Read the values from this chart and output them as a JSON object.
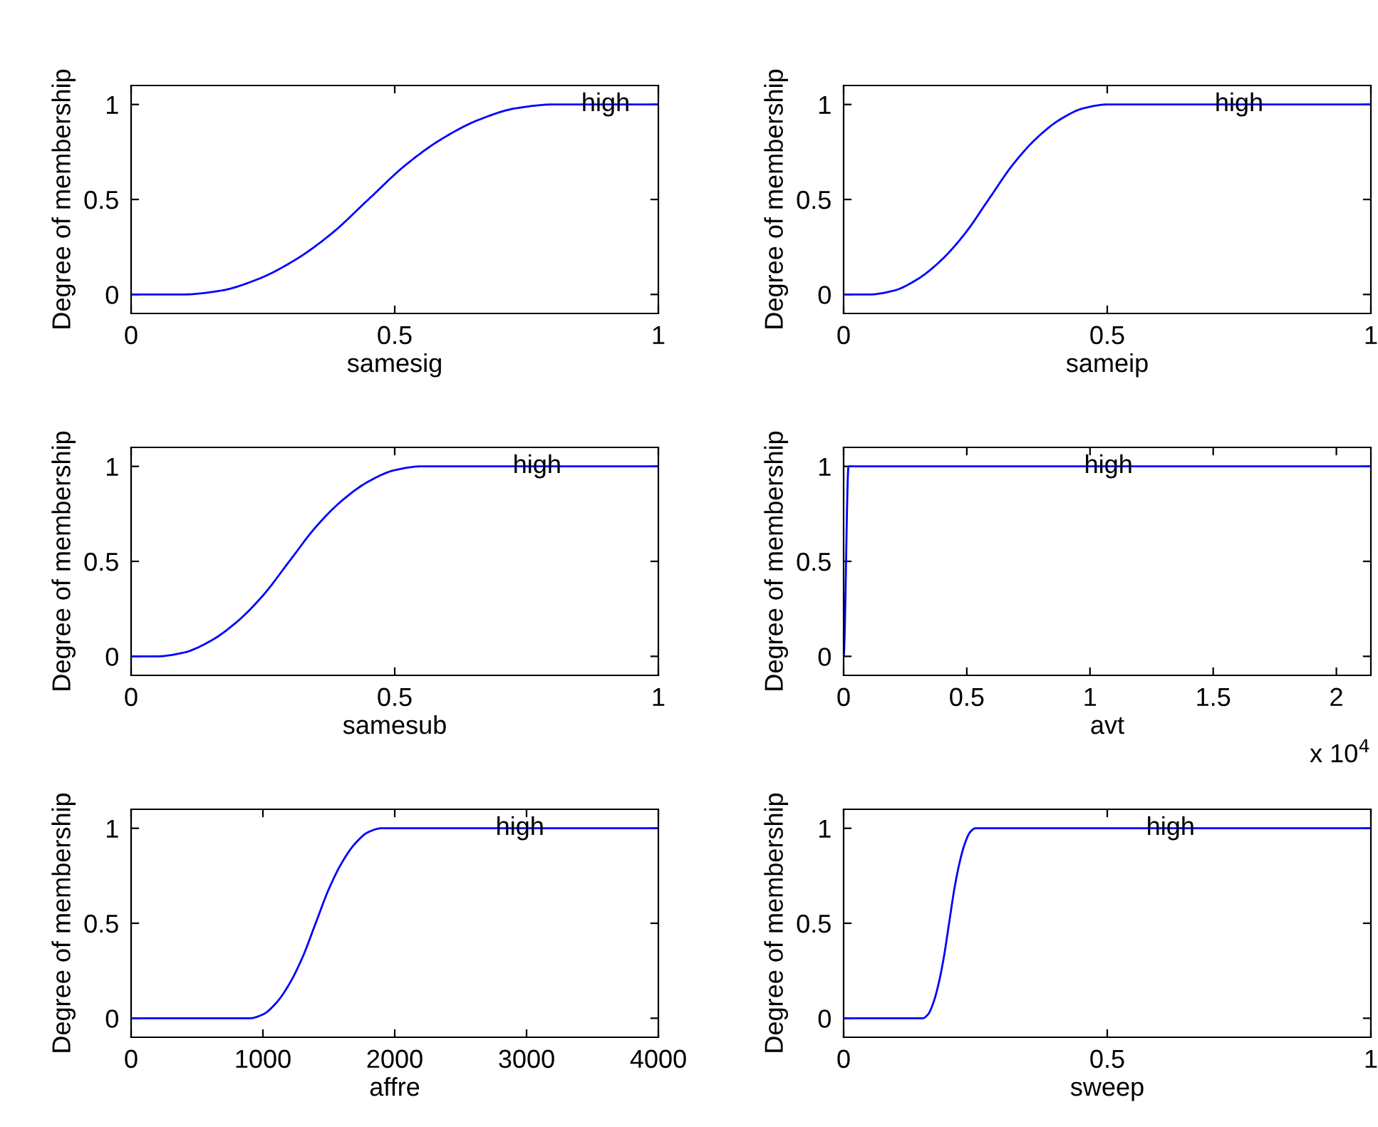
{
  "chart_data": [
    {
      "type": "line",
      "xlabel": "samesig",
      "ylabel": "Degree of membership",
      "xlim": [
        0,
        1
      ],
      "xticks": [
        0,
        0.5,
        1
      ],
      "ylim": [
        -0.1,
        1.1
      ],
      "yticks": [
        0,
        0.5,
        1
      ],
      "grid": false,
      "legend": false,
      "annotations": [
        {
          "text": "high",
          "x": 0.9,
          "y": 1
        }
      ],
      "series": [
        {
          "color": "#0000ff",
          "x": [
            0,
            0.1,
            0.17,
            0.24,
            0.31,
            0.38,
            0.45,
            0.52,
            0.59,
            0.66,
            0.73,
            0.8,
            1
          ],
          "values": [
            0,
            0,
            0.02,
            0.08,
            0.18,
            0.32,
            0.5,
            0.68,
            0.82,
            0.92,
            0.98,
            1,
            1
          ]
        }
      ]
    },
    {
      "type": "line",
      "xlabel": "sameip",
      "ylabel": "Degree of membership",
      "xlim": [
        0,
        1
      ],
      "xticks": [
        0,
        0.5,
        1
      ],
      "ylim": [
        -0.1,
        1.1
      ],
      "yticks": [
        0,
        0.5,
        1
      ],
      "grid": false,
      "legend": false,
      "annotations": [
        {
          "text": "high",
          "x": 0.75,
          "y": 1
        }
      ],
      "series": [
        {
          "color": "#0000ff",
          "x": [
            0,
            0.05,
            0.095,
            0.14,
            0.185,
            0.23,
            0.275,
            0.32,
            0.365,
            0.41,
            0.455,
            0.5,
            1
          ],
          "values": [
            0,
            0,
            0.02,
            0.08,
            0.18,
            0.32,
            0.5,
            0.68,
            0.82,
            0.92,
            0.98,
            1,
            1
          ]
        }
      ]
    },
    {
      "type": "line",
      "xlabel": "samesub",
      "ylabel": "Degree of membership",
      "xlim": [
        0,
        1
      ],
      "xticks": [
        0,
        0.5,
        1
      ],
      "ylim": [
        -0.1,
        1.1
      ],
      "yticks": [
        0,
        0.5,
        1
      ],
      "grid": false,
      "legend": false,
      "annotations": [
        {
          "text": "high",
          "x": 0.77,
          "y": 1
        }
      ],
      "series": [
        {
          "color": "#0000ff",
          "x": [
            0,
            0.05,
            0.1,
            0.15,
            0.2,
            0.25,
            0.3,
            0.35,
            0.4,
            0.45,
            0.5,
            0.55,
            1
          ],
          "values": [
            0,
            0,
            0.02,
            0.08,
            0.18,
            0.32,
            0.5,
            0.68,
            0.82,
            0.92,
            0.98,
            1,
            1
          ]
        }
      ]
    },
    {
      "type": "line",
      "xlabel": "avt",
      "ylabel": "Degree of membership",
      "xlim": [
        0,
        2.14
      ],
      "xticks": [
        0,
        0.5,
        1,
        1.5,
        2
      ],
      "ylim": [
        -0.1,
        1.1
      ],
      "yticks": [
        0,
        0.5,
        1
      ],
      "grid": false,
      "legend": false,
      "annotations": [
        {
          "text": "high",
          "x": 1.075,
          "y": 1
        },
        "x 10$^{4}$"
      ],
      "series": [
        {
          "color": "#0000ff",
          "x": [
            0,
            0.02,
            2.14
          ],
          "values": [
            0,
            1,
            1
          ]
        }
      ]
    },
    {
      "type": "line",
      "xlabel": "affre",
      "ylabel": "Degree of membership",
      "xlim": [
        0,
        4000
      ],
      "xticks": [
        0,
        1000,
        2000,
        3000,
        4000
      ],
      "ylim": [
        -0.1,
        1.1
      ],
      "yticks": [
        0,
        0.5,
        1
      ],
      "grid": false,
      "legend": false,
      "annotations": [
        {
          "text": "high",
          "x": 2950,
          "y": 1
        }
      ],
      "series": [
        {
          "color": "#0000ff",
          "x": [
            0,
            900,
            1000,
            1100,
            1200,
            1300,
            1400,
            1500,
            1600,
            1700,
            1800,
            1900,
            4000
          ],
          "values": [
            0,
            0,
            0.02,
            0.08,
            0.18,
            0.32,
            0.5,
            0.68,
            0.82,
            0.92,
            0.98,
            1,
            1
          ]
        }
      ]
    },
    {
      "type": "line",
      "xlabel": "sweep",
      "ylabel": "Degree of membership",
      "xlim": [
        0,
        1
      ],
      "xticks": [
        0,
        0.5,
        1
      ],
      "ylim": [
        -0.1,
        1.1
      ],
      "yticks": [
        0,
        0.5,
        1
      ],
      "grid": false,
      "legend": false,
      "annotations": [
        {
          "text": "high",
          "x": 0.62,
          "y": 1
        }
      ],
      "series": [
        {
          "color": "#0000ff",
          "x": [
            0,
            0.15,
            0.16,
            0.17,
            0.18,
            0.19,
            0.2,
            0.21,
            0.22,
            0.23,
            0.24,
            0.25,
            1
          ],
          "values": [
            0,
            0,
            0.02,
            0.08,
            0.18,
            0.32,
            0.5,
            0.68,
            0.82,
            0.92,
            0.98,
            1,
            1
          ]
        }
      ]
    }
  ]
}
